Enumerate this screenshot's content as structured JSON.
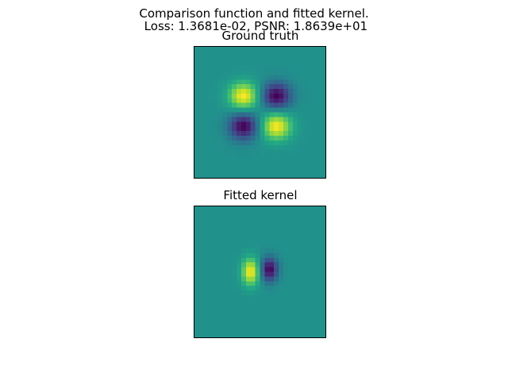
{
  "figure": {
    "suptitle_line1": "Comparison function and fitted kernel.",
    "suptitle_line2": " Loss: 1.3681e-02, PSNR: 1.8639e+01",
    "colormap": "viridis",
    "background_color": "#21908d",
    "positive_color": "#fde725",
    "negative_color": "#440154"
  },
  "chart_data": [
    {
      "type": "heatmap",
      "title": "Ground truth",
      "axes_visible": false,
      "grid_size": 28,
      "xlim": [
        0,
        28
      ],
      "ylim": [
        0,
        28
      ],
      "value_range": [
        -1,
        1
      ],
      "blobs": [
        {
          "x": 10.5,
          "y": 10.5,
          "amplitude": 1.0,
          "sigma_x": 2.2,
          "sigma_y": 2.0
        },
        {
          "x": 17.5,
          "y": 10.5,
          "amplitude": -1.0,
          "sigma_x": 2.2,
          "sigma_y": 2.0
        },
        {
          "x": 10.5,
          "y": 17.0,
          "amplitude": -1.0,
          "sigma_x": 2.2,
          "sigma_y": 2.0
        },
        {
          "x": 17.5,
          "y": 17.0,
          "amplitude": 1.0,
          "sigma_x": 2.2,
          "sigma_y": 2.0
        }
      ]
    },
    {
      "type": "heatmap",
      "title": "Fitted kernel",
      "axes_visible": false,
      "grid_size": 28,
      "xlim": [
        0,
        28
      ],
      "ylim": [
        0,
        28
      ],
      "value_range": [
        -1,
        1
      ],
      "blobs": [
        {
          "x": 12.0,
          "y": 14.0,
          "amplitude": 1.0,
          "sigma_x": 1.3,
          "sigma_y": 2.0
        },
        {
          "x": 16.0,
          "y": 13.5,
          "amplitude": -1.0,
          "sigma_x": 1.3,
          "sigma_y": 1.8
        }
      ]
    }
  ]
}
